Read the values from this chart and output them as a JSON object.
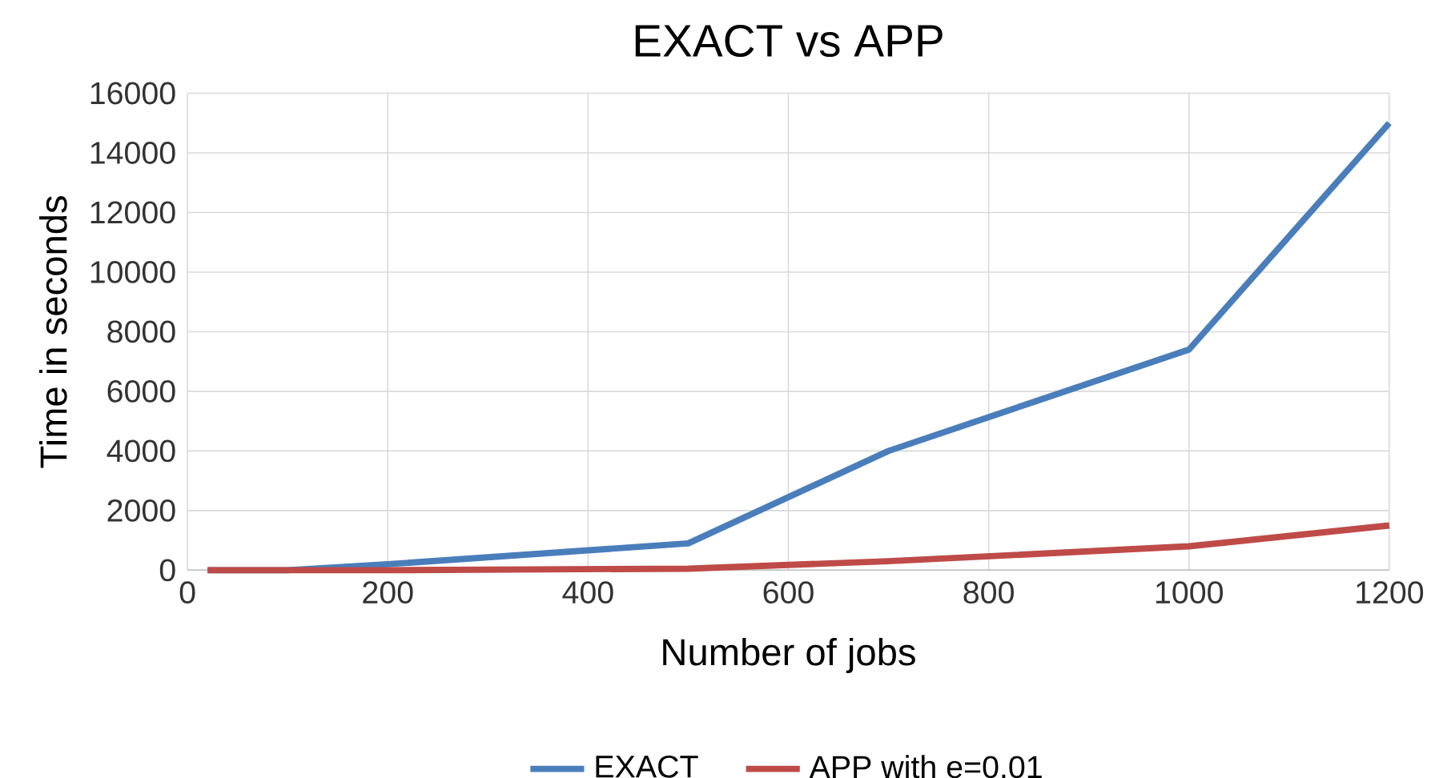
{
  "chart_data": {
    "type": "line",
    "title": "EXACT vs APP",
    "xlabel": "Number of jobs",
    "ylabel": "Time in seconds",
    "xlim": [
      0,
      1200
    ],
    "xticks": [
      0,
      200,
      400,
      600,
      800,
      1000,
      1200
    ],
    "ylim": [
      0,
      16000
    ],
    "yticks": [
      0,
      2000,
      4000,
      6000,
      8000,
      10000,
      12000,
      14000,
      16000
    ],
    "grid": true,
    "legend": "bottom",
    "marker": "none",
    "line_style": "solid",
    "series": [
      {
        "name": "EXACT",
        "color": "#4a7ebb",
        "x": [
          20,
          100,
          200,
          500,
          700,
          1000,
          1200
        ],
        "values": [
          0,
          0,
          200,
          900,
          4000,
          7400,
          15000
        ]
      },
      {
        "name": "APP with e=0.01",
        "color": "#be4b48",
        "x": [
          20,
          100,
          200,
          500,
          700,
          1000,
          1200
        ],
        "values": [
          0,
          0,
          0,
          50,
          300,
          800,
          1500
        ]
      }
    ]
  }
}
